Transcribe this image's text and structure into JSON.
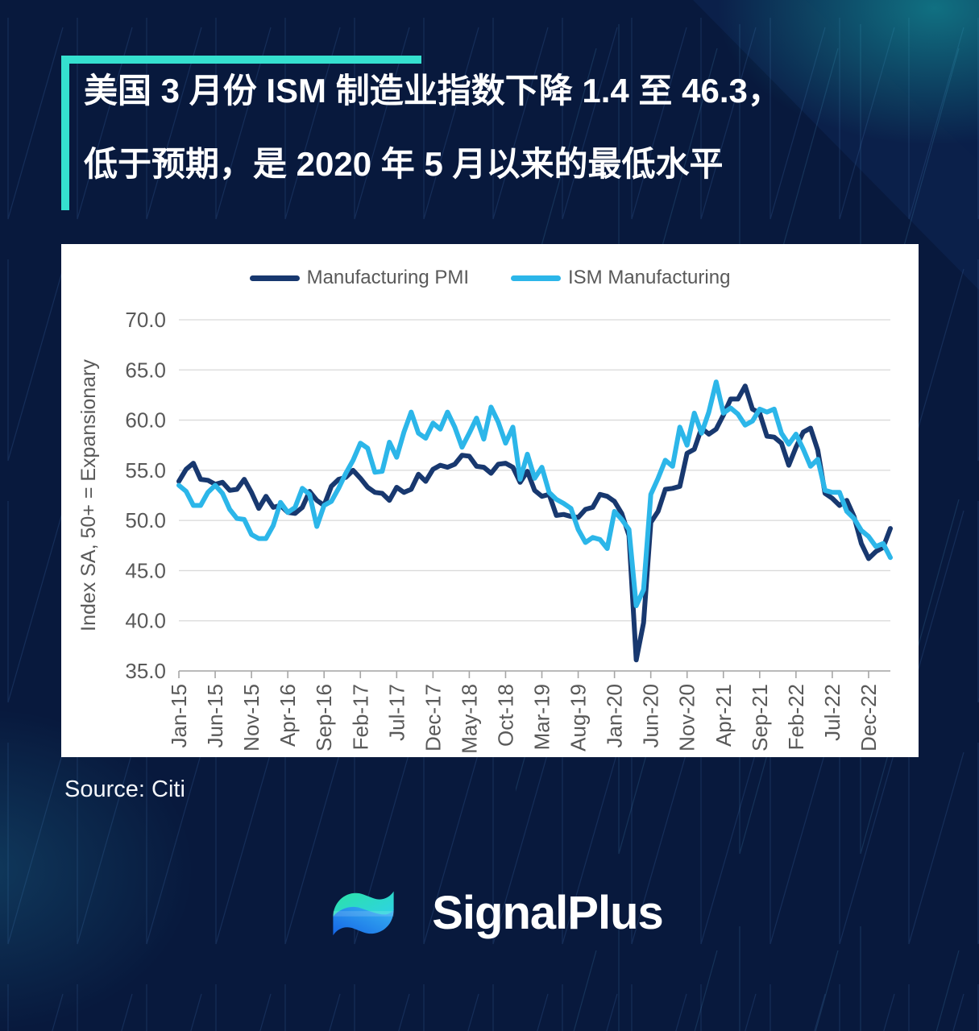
{
  "headline": {
    "line1": "美国 3 月份 ISM 制造业指数下降 1.4 至 46.3，",
    "line2": "低于预期，是 2020 年 5 月以来的最低水平"
  },
  "source_note": "Source: Citi",
  "brand": {
    "name": "SignalPlus"
  },
  "colors": {
    "background": "#08193D",
    "accent": "#35E0CF",
    "panel": "#FFFFFF",
    "grid": "#D9D9D9",
    "axis_line": "#A6A6A6",
    "axis_text": "#595959"
  },
  "chart_data": {
    "type": "line",
    "title": "",
    "xlabel": "",
    "ylabel": "Index SA, 50+ = Expansionary",
    "ylim": [
      35,
      70
    ],
    "ytick_step": 5,
    "grid": true,
    "legend_position": "top-center",
    "x_unit": "month",
    "x_range": [
      "Jan-15",
      "Mar-23"
    ],
    "x_tick_every": 5,
    "x_tick_labels": [
      "Jan-15",
      "Jun-15",
      "Nov-15",
      "Apr-16",
      "Sep-16",
      "Feb-17",
      "Jul-17",
      "Dec-17",
      "May-18",
      "Oct-18",
      "Mar-19",
      "Aug-19",
      "Jan-20",
      "Jun-20",
      "Nov-20",
      "Apr-21",
      "Sep-21",
      "Feb-22",
      "Jul-22",
      "Dec-22"
    ],
    "series": [
      {
        "name": "Manufacturing PMI",
        "color": "#18386F",
        "values": [
          53.9,
          55.1,
          55.7,
          54.1,
          54.0,
          53.6,
          53.8,
          53.0,
          53.1,
          54.1,
          52.8,
          51.2,
          52.4,
          51.3,
          51.5,
          50.8,
          50.7,
          51.3,
          52.9,
          52.0,
          51.5,
          53.4,
          54.1,
          54.3,
          55.0,
          54.2,
          53.3,
          52.8,
          52.7,
          52.0,
          53.3,
          52.8,
          53.1,
          54.6,
          53.9,
          55.1,
          55.5,
          55.3,
          55.6,
          56.5,
          56.4,
          55.4,
          55.3,
          54.7,
          55.6,
          55.7,
          55.3,
          53.8,
          54.9,
          53.0,
          52.4,
          52.6,
          50.5,
          50.6,
          50.4,
          50.3,
          51.1,
          51.3,
          52.6,
          52.4,
          51.9,
          50.7,
          48.5,
          36.1,
          39.8,
          49.8,
          50.9,
          53.1,
          53.2,
          53.4,
          56.7,
          57.1,
          59.2,
          58.6,
          59.1,
          60.5,
          62.1,
          62.1,
          63.4,
          61.1,
          60.7,
          58.4,
          58.3,
          57.7,
          55.5,
          57.3,
          58.8,
          59.2,
          57.0,
          52.7,
          52.2,
          51.5,
          52.0,
          50.4,
          47.7,
          46.2,
          46.9,
          47.3,
          49.2
        ]
      },
      {
        "name": "ISM Manufacturing",
        "color": "#2CB6E9",
        "values": [
          53.5,
          52.9,
          51.5,
          51.5,
          52.8,
          53.5,
          52.7,
          51.1,
          50.2,
          50.1,
          48.6,
          48.2,
          48.2,
          49.5,
          51.8,
          50.8,
          51.3,
          53.2,
          52.6,
          49.4,
          51.5,
          51.9,
          53.2,
          54.7,
          56.0,
          57.7,
          57.2,
          54.8,
          54.9,
          57.8,
          56.3,
          58.8,
          60.8,
          58.7,
          58.2,
          59.7,
          59.1,
          60.8,
          59.3,
          57.3,
          58.7,
          60.2,
          58.1,
          61.3,
          59.8,
          57.7,
          59.3,
          54.1,
          56.6,
          54.2,
          55.3,
          52.8,
          52.1,
          51.7,
          51.2,
          49.1,
          47.8,
          48.3,
          48.1,
          47.2,
          50.9,
          50.1,
          49.1,
          41.5,
          43.1,
          52.6,
          54.2,
          56.0,
          55.4,
          59.3,
          57.5,
          60.7,
          58.7,
          60.8,
          63.8,
          60.7,
          61.2,
          60.6,
          59.5,
          59.9,
          61.1,
          60.8,
          61.1,
          58.7,
          57.6,
          58.6,
          57.1,
          55.4,
          56.1,
          53.0,
          52.8,
          52.8,
          50.9,
          50.2,
          49.0,
          48.4,
          47.4,
          47.7,
          46.3
        ]
      }
    ]
  }
}
